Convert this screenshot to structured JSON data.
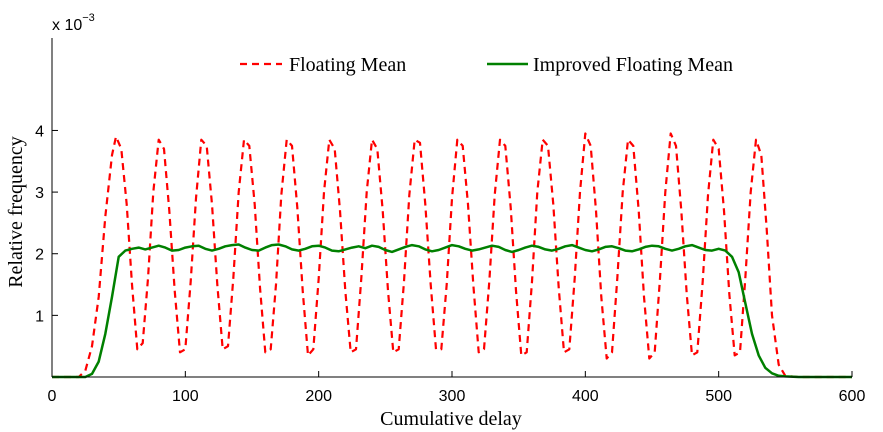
{
  "chart_data": {
    "type": "line",
    "xlabel": "Cumulative delay",
    "ylabel": "Relative frequency",
    "y_multiplier": {
      "base": "x 10",
      "exponent": "−3"
    },
    "xlim": [
      0,
      600
    ],
    "ylim": [
      0,
      5.5
    ],
    "y_unit_scale": 0.001,
    "xticks": [
      0,
      100,
      200,
      300,
      400,
      500,
      600
    ],
    "xtick_labels": [
      "0",
      "100",
      "200",
      "300",
      "400",
      "500",
      "600"
    ],
    "yticks": [
      1,
      2,
      3,
      4
    ],
    "ytick_labels": [
      "1",
      "2",
      "3",
      "4"
    ],
    "grid": false,
    "legend_position": "top-right",
    "series": [
      {
        "name": "Floating Mean",
        "color": "#ff0000",
        "style": "dashed",
        "x": [
          0,
          20,
          25,
          30,
          35,
          40,
          45,
          48,
          52,
          56,
          60,
          64,
          68,
          72,
          76,
          80,
          84,
          88,
          92,
          96,
          100,
          104,
          108,
          112,
          116,
          120,
          124,
          128,
          132,
          136,
          140,
          144,
          148,
          152,
          156,
          160,
          164,
          168,
          172,
          176,
          180,
          184,
          188,
          192,
          196,
          200,
          204,
          208,
          212,
          216,
          220,
          224,
          228,
          232,
          236,
          240,
          244,
          248,
          252,
          256,
          260,
          264,
          268,
          272,
          276,
          280,
          284,
          288,
          292,
          296,
          300,
          304,
          308,
          312,
          316,
          320,
          324,
          328,
          332,
          336,
          340,
          344,
          348,
          352,
          356,
          360,
          364,
          368,
          372,
          376,
          380,
          384,
          388,
          392,
          396,
          400,
          404,
          408,
          412,
          416,
          420,
          424,
          428,
          432,
          436,
          440,
          444,
          448,
          452,
          456,
          460,
          464,
          468,
          472,
          476,
          480,
          484,
          488,
          492,
          496,
          500,
          504,
          508,
          512,
          516,
          520,
          524,
          528,
          532,
          536,
          540,
          545,
          550,
          560,
          600
        ],
        "values": [
          0,
          0,
          0.1,
          0.5,
          1.3,
          2.6,
          3.6,
          3.9,
          3.7,
          2.8,
          1.5,
          0.45,
          0.55,
          1.6,
          3.0,
          3.85,
          3.7,
          2.7,
          1.4,
          0.4,
          0.45,
          1.55,
          2.9,
          3.85,
          3.75,
          2.8,
          1.5,
          0.45,
          0.5,
          1.6,
          3.0,
          3.85,
          3.75,
          2.8,
          1.45,
          0.4,
          0.45,
          1.5,
          2.95,
          3.85,
          3.75,
          2.75,
          1.4,
          0.35,
          0.45,
          1.6,
          3.0,
          3.85,
          3.7,
          2.7,
          1.4,
          0.4,
          0.45,
          1.6,
          3.0,
          3.85,
          3.7,
          2.7,
          1.4,
          0.4,
          0.45,
          1.55,
          2.95,
          3.85,
          3.8,
          2.8,
          1.5,
          0.45,
          0.45,
          1.5,
          2.9,
          3.85,
          3.75,
          2.8,
          1.5,
          0.4,
          0.45,
          1.55,
          2.95,
          3.85,
          3.75,
          2.75,
          1.4,
          0.35,
          0.4,
          1.55,
          3.0,
          3.85,
          3.75,
          2.8,
          1.45,
          0.4,
          0.45,
          1.6,
          3.0,
          3.95,
          3.75,
          2.7,
          1.3,
          0.3,
          0.4,
          1.6,
          3.0,
          3.85,
          3.75,
          2.7,
          1.3,
          0.3,
          0.4,
          1.6,
          3.0,
          3.95,
          3.75,
          2.7,
          1.35,
          0.35,
          0.4,
          1.55,
          2.95,
          3.85,
          3.7,
          2.7,
          1.35,
          0.35,
          0.4,
          1.6,
          3.0,
          3.85,
          3.6,
          2.4,
          1.0,
          0.2,
          0.02,
          0,
          0
        ]
      },
      {
        "name": "Improved Floating Mean",
        "color": "#008000",
        "style": "solid",
        "x": [
          0,
          25,
          30,
          35,
          40,
          45,
          50,
          55,
          60,
          65,
          70,
          75,
          80,
          85,
          90,
          95,
          100,
          105,
          110,
          115,
          120,
          125,
          130,
          135,
          140,
          145,
          150,
          155,
          160,
          165,
          170,
          175,
          180,
          185,
          190,
          195,
          200,
          205,
          210,
          215,
          220,
          225,
          230,
          235,
          240,
          245,
          250,
          255,
          260,
          265,
          270,
          275,
          280,
          285,
          290,
          295,
          300,
          305,
          310,
          315,
          320,
          325,
          330,
          335,
          340,
          345,
          350,
          355,
          360,
          365,
          370,
          375,
          380,
          385,
          390,
          395,
          400,
          405,
          410,
          415,
          420,
          425,
          430,
          435,
          440,
          445,
          450,
          455,
          460,
          465,
          470,
          475,
          480,
          485,
          490,
          495,
          500,
          505,
          510,
          515,
          520,
          525,
          530,
          535,
          540,
          545,
          550,
          560,
          570,
          575,
          600
        ],
        "values": [
          0,
          0,
          0.05,
          0.25,
          0.7,
          1.3,
          1.95,
          2.05,
          2.08,
          2.1,
          2.07,
          2.1,
          2.13,
          2.1,
          2.05,
          2.06,
          2.1,
          2.12,
          2.13,
          2.08,
          2.05,
          2.08,
          2.12,
          2.14,
          2.15,
          2.1,
          2.06,
          2.05,
          2.1,
          2.14,
          2.15,
          2.12,
          2.07,
          2.05,
          2.08,
          2.12,
          2.13,
          2.1,
          2.05,
          2.04,
          2.07,
          2.1,
          2.12,
          2.09,
          2.13,
          2.11,
          2.06,
          2.03,
          2.07,
          2.11,
          2.14,
          2.12,
          2.07,
          2.04,
          2.06,
          2.1,
          2.14,
          2.12,
          2.08,
          2.05,
          2.07,
          2.1,
          2.13,
          2.11,
          2.06,
          2.03,
          2.06,
          2.1,
          2.13,
          2.11,
          2.07,
          2.05,
          2.08,
          2.12,
          2.14,
          2.1,
          2.06,
          2.04,
          2.07,
          2.11,
          2.12,
          2.09,
          2.05,
          2.04,
          2.07,
          2.11,
          2.13,
          2.12,
          2.08,
          2.05,
          2.08,
          2.12,
          2.14,
          2.1,
          2.06,
          2.05,
          2.08,
          2.05,
          1.95,
          1.7,
          1.2,
          0.7,
          0.35,
          0.15,
          0.06,
          0.02,
          0.01,
          0,
          0,
          0,
          0
        ]
      }
    ]
  }
}
